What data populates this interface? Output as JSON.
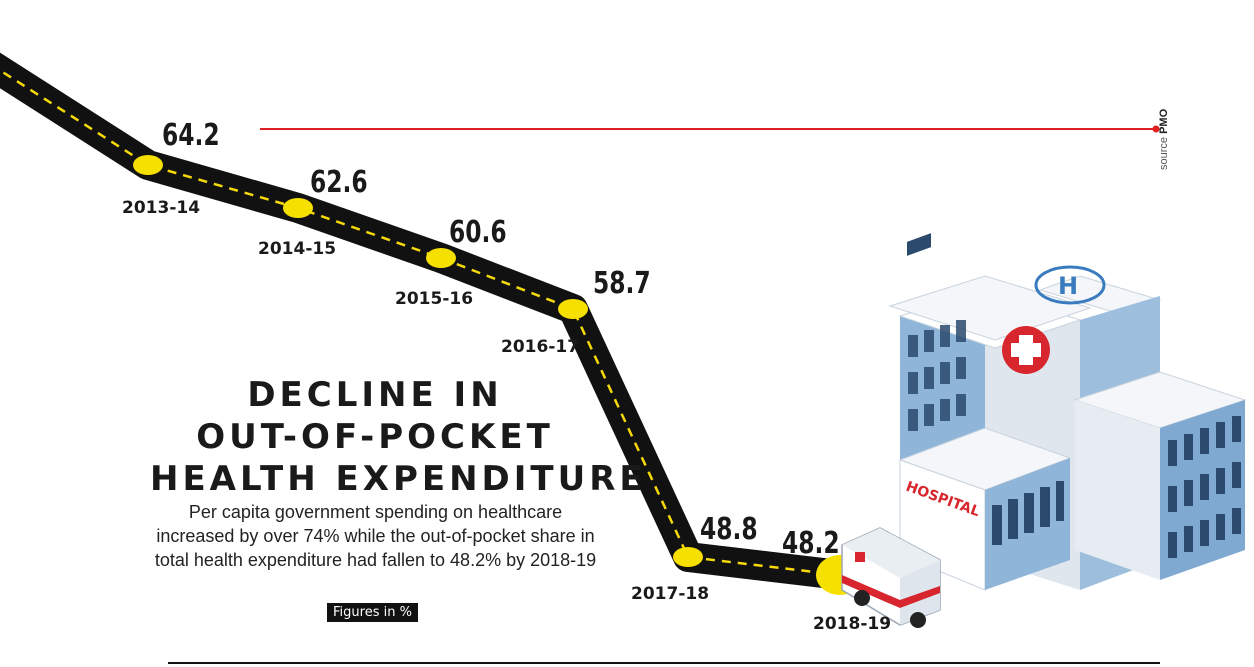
{
  "chart_data": {
    "type": "line",
    "title_lines": [
      "DECLINE IN",
      "OUT-OF-POCKET",
      "HEALTH EXPENDITURE"
    ],
    "subtitle": "Per capita government spending on healthcare increased by over 74% while the out-of-pocket share in total health expenditure had fallen to 48.2% by 2018-19",
    "units_note": "Figures in %",
    "source_label": "source",
    "source_name": "PMO",
    "categories": [
      "2013-14",
      "2014-15",
      "2015-16",
      "2016-17",
      "2017-18",
      "2018-19"
    ],
    "values": [
      64.2,
      62.6,
      60.6,
      58.7,
      48.8,
      48.2
    ],
    "value_labels": [
      "64.2",
      "62.6",
      "60.6",
      "58.7",
      "48.8",
      "48.2"
    ],
    "ylim": [
      46,
      66
    ],
    "grid": false,
    "colors": {
      "road": "#111111",
      "lane": "#f5d90a",
      "marker": "#f5e000",
      "accent_line": "#e02020"
    },
    "illustrations": [
      "hospital-building",
      "ambulance"
    ],
    "hospital_sign": "HOSPITAL"
  }
}
